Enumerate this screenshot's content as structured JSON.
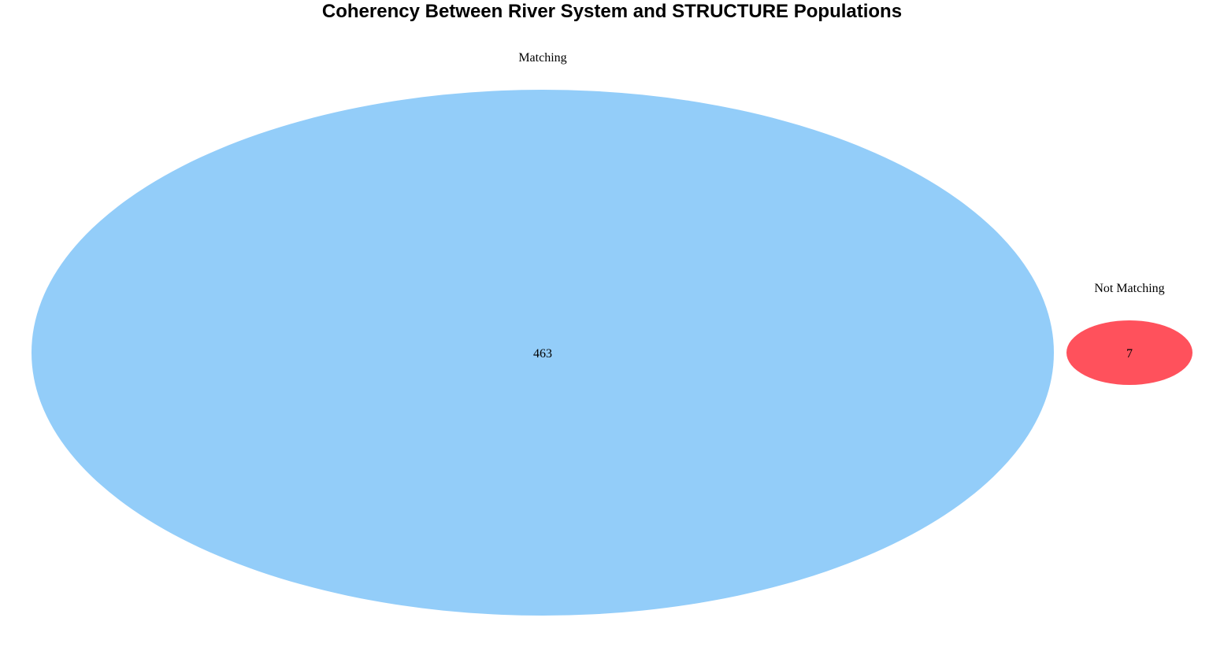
{
  "title": "Coherency Between River System and STRUCTURE Populations",
  "sets": [
    {
      "label": "Matching",
      "count": "463",
      "color": "#93cdf9"
    },
    {
      "label": "Not Matching",
      "count": "7",
      "color": "#ff515c"
    }
  ]
}
